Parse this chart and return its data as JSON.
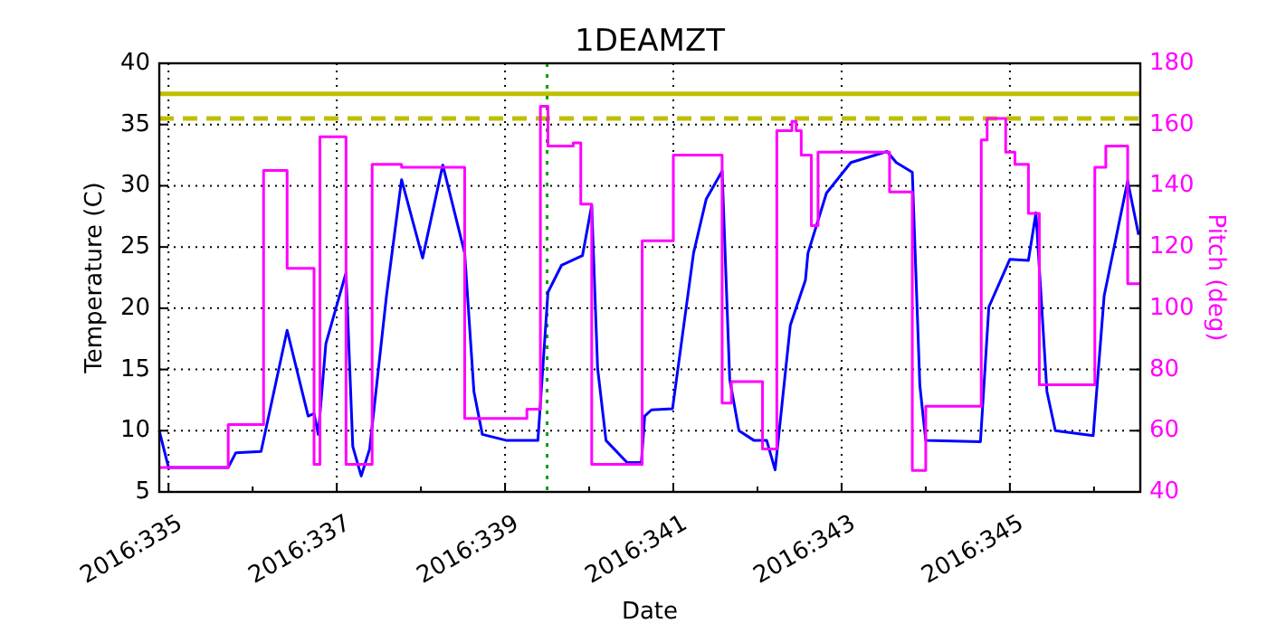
{
  "chart_data": {
    "type": "line",
    "title": "1DEAMZT",
    "xlabel": "Date",
    "ylabel": "Temperature (C)",
    "y2label": "Pitch (deg)",
    "xlim": [
      "2016-11-29T21:22",
      "2016-12-11T13:12"
    ],
    "ylim": [
      5,
      40
    ],
    "y2lim": [
      40,
      180
    ],
    "xticks": [
      {
        "value": "2016-11-30",
        "label": "2016:335"
      },
      {
        "value": "2016-12-01",
        "label": null
      },
      {
        "value": "2016-12-02",
        "label": "2016:337"
      },
      {
        "value": "2016-12-03",
        "label": null
      },
      {
        "value": "2016-12-04",
        "label": "2016:339"
      },
      {
        "value": "2016-12-05",
        "label": null
      },
      {
        "value": "2016-12-06",
        "label": "2016:341"
      },
      {
        "value": "2016-12-07",
        "label": null
      },
      {
        "value": "2016-12-08",
        "label": "2016:343"
      },
      {
        "value": "2016-12-09",
        "label": null
      },
      {
        "value": "2016-12-10",
        "label": "2016:345"
      },
      {
        "value": "2016-12-11",
        "label": null
      }
    ],
    "yticks": [
      5,
      10,
      15,
      20,
      25,
      30,
      35,
      40
    ],
    "y2ticks": [
      40,
      60,
      80,
      100,
      120,
      140,
      160,
      180
    ],
    "grid": true,
    "series": [
      {
        "type": "line",
        "color": "#0000ff",
        "x": [
          "2016-11-29T21:22",
          "2016-11-30T00:00",
          "2016-11-30T17:02",
          "2016-11-30T19:12",
          "2016-12-01T02:24",
          "2016-12-01T09:50",
          "2016-12-01T15:50",
          "2016-12-01T17:31",
          "2016-12-01T18:43",
          "2016-12-01T20:53",
          "2016-12-02T02:38",
          "2016-12-02T04:34",
          "2016-12-02T06:58",
          "2016-12-02T09:22",
          "2016-12-02T14:10",
          "2016-12-02T18:29",
          "2016-12-03T00:29",
          "2016-12-03T06:14",
          "2016-12-03T12:29",
          "2016-12-03T15:07",
          "2016-12-03T17:31",
          "2016-12-04T00:29",
          "2016-12-04T09:22",
          "2016-12-04T12:14",
          "2016-12-04T16:05",
          "2016-12-04T22:05",
          "2016-12-05T00:43",
          "2016-12-05T02:24",
          "2016-12-05T04:48",
          "2016-12-05T10:48",
          "2016-12-05T14:53",
          "2016-12-05T15:50",
          "2016-12-05T17:46",
          "2016-12-05T23:46",
          "2016-12-06T05:46",
          "2016-12-06T09:22",
          "2016-12-06T13:55",
          "2016-12-06T16:05",
          "2016-12-06T18:43",
          "2016-12-06T23:02",
          "2016-12-07T02:38",
          "2016-12-07T05:02",
          "2016-12-07T09:22",
          "2016-12-07T13:41",
          "2016-12-07T14:24",
          "2016-12-07T19:41",
          "2016-12-08T02:38",
          "2016-12-08T12:58",
          "2016-12-08T15:36",
          "2016-12-08T20:10",
          "2016-12-08T22:19",
          "2016-12-09T00:00",
          "2016-12-09T15:36",
          "2016-12-09T18:00",
          "2016-12-10T00:00",
          "2016-12-10T05:17",
          "2016-12-10T07:26",
          "2016-12-10T10:34",
          "2016-12-10T12:58",
          "2016-12-10T23:46",
          "2016-12-11T02:53",
          "2016-12-11T09:36",
          "2016-12-11T12:43"
        ],
        "values": [
          10.0,
          7.0,
          7.0,
          8.2,
          8.3,
          18.2,
          11.2,
          11.4,
          9.7,
          17.1,
          22.9,
          8.7,
          6.3,
          8.5,
          21.0,
          30.5,
          24.1,
          31.7,
          24.5,
          13.2,
          9.7,
          9.2,
          9.2,
          21.3,
          23.5,
          24.3,
          28.4,
          15.1,
          9.2,
          7.4,
          7.4,
          11.2,
          11.7,
          11.8,
          24.5,
          28.9,
          31.2,
          14.2,
          10.0,
          9.2,
          9.2,
          6.8,
          18.6,
          22.3,
          24.5,
          29.4,
          31.9,
          32.8,
          31.9,
          31.1,
          13.7,
          9.2,
          9.1,
          20.1,
          24.0,
          23.9,
          27.8,
          13.2,
          10.0,
          9.6,
          21.0,
          30.4,
          26.0
        ]
      },
      {
        "type": "step",
        "axis": "y2",
        "color": "#ff00ff",
        "x": [
          "2016-11-29T21:22",
          "2016-11-30T17:02",
          "2016-12-01T03:07",
          "2016-12-01T09:50",
          "2016-12-01T17:31",
          "2016-12-01T19:12",
          "2016-12-02T02:38",
          "2016-12-02T10:05",
          "2016-12-02T18:29",
          "2016-12-03T12:29",
          "2016-12-04T06:14",
          "2016-12-04T10:05",
          "2016-12-04T12:14",
          "2016-12-04T19:26",
          "2016-12-04T21:36",
          "2016-12-05T00:43",
          "2016-12-05T15:07",
          "2016-12-06T00:00",
          "2016-12-06T13:55",
          "2016-12-06T16:34",
          "2016-12-07T01:26",
          "2016-12-07T05:31",
          "2016-12-07T09:50",
          "2016-12-07T11:02",
          "2016-12-07T12:29",
          "2016-12-07T15:22",
          "2016-12-07T17:17",
          "2016-12-08T13:41",
          "2016-12-08T20:10",
          "2016-12-09T00:00",
          "2016-12-09T15:50",
          "2016-12-09T17:31",
          "2016-12-09T22:48",
          "2016-12-10T01:26",
          "2016-12-10T05:17",
          "2016-12-10T08:24",
          "2016-12-11T00:14",
          "2016-12-11T03:22",
          "2016-12-11T09:36",
          "2016-12-11T13:12"
        ],
        "values": [
          48,
          62,
          145,
          113,
          49,
          156,
          49,
          147,
          146,
          64,
          67,
          166,
          153,
          154,
          134,
          49,
          122,
          150,
          69,
          76,
          54,
          158,
          161,
          158,
          150,
          127,
          151,
          138,
          47,
          68,
          155,
          162,
          151,
          147,
          131,
          75,
          146,
          153,
          108,
          108
        ]
      }
    ],
    "ref_lines": [
      {
        "axis": "y",
        "value": 37.5,
        "color": "#bfbf00",
        "line_style": "solid"
      },
      {
        "axis": "y",
        "value": 35.5,
        "color": "#bfbf00",
        "line_style": "dashed"
      },
      {
        "axis": "x",
        "value": "2016-12-04T12:00",
        "color": "#00a000",
        "line_style": "dotted"
      }
    ]
  }
}
